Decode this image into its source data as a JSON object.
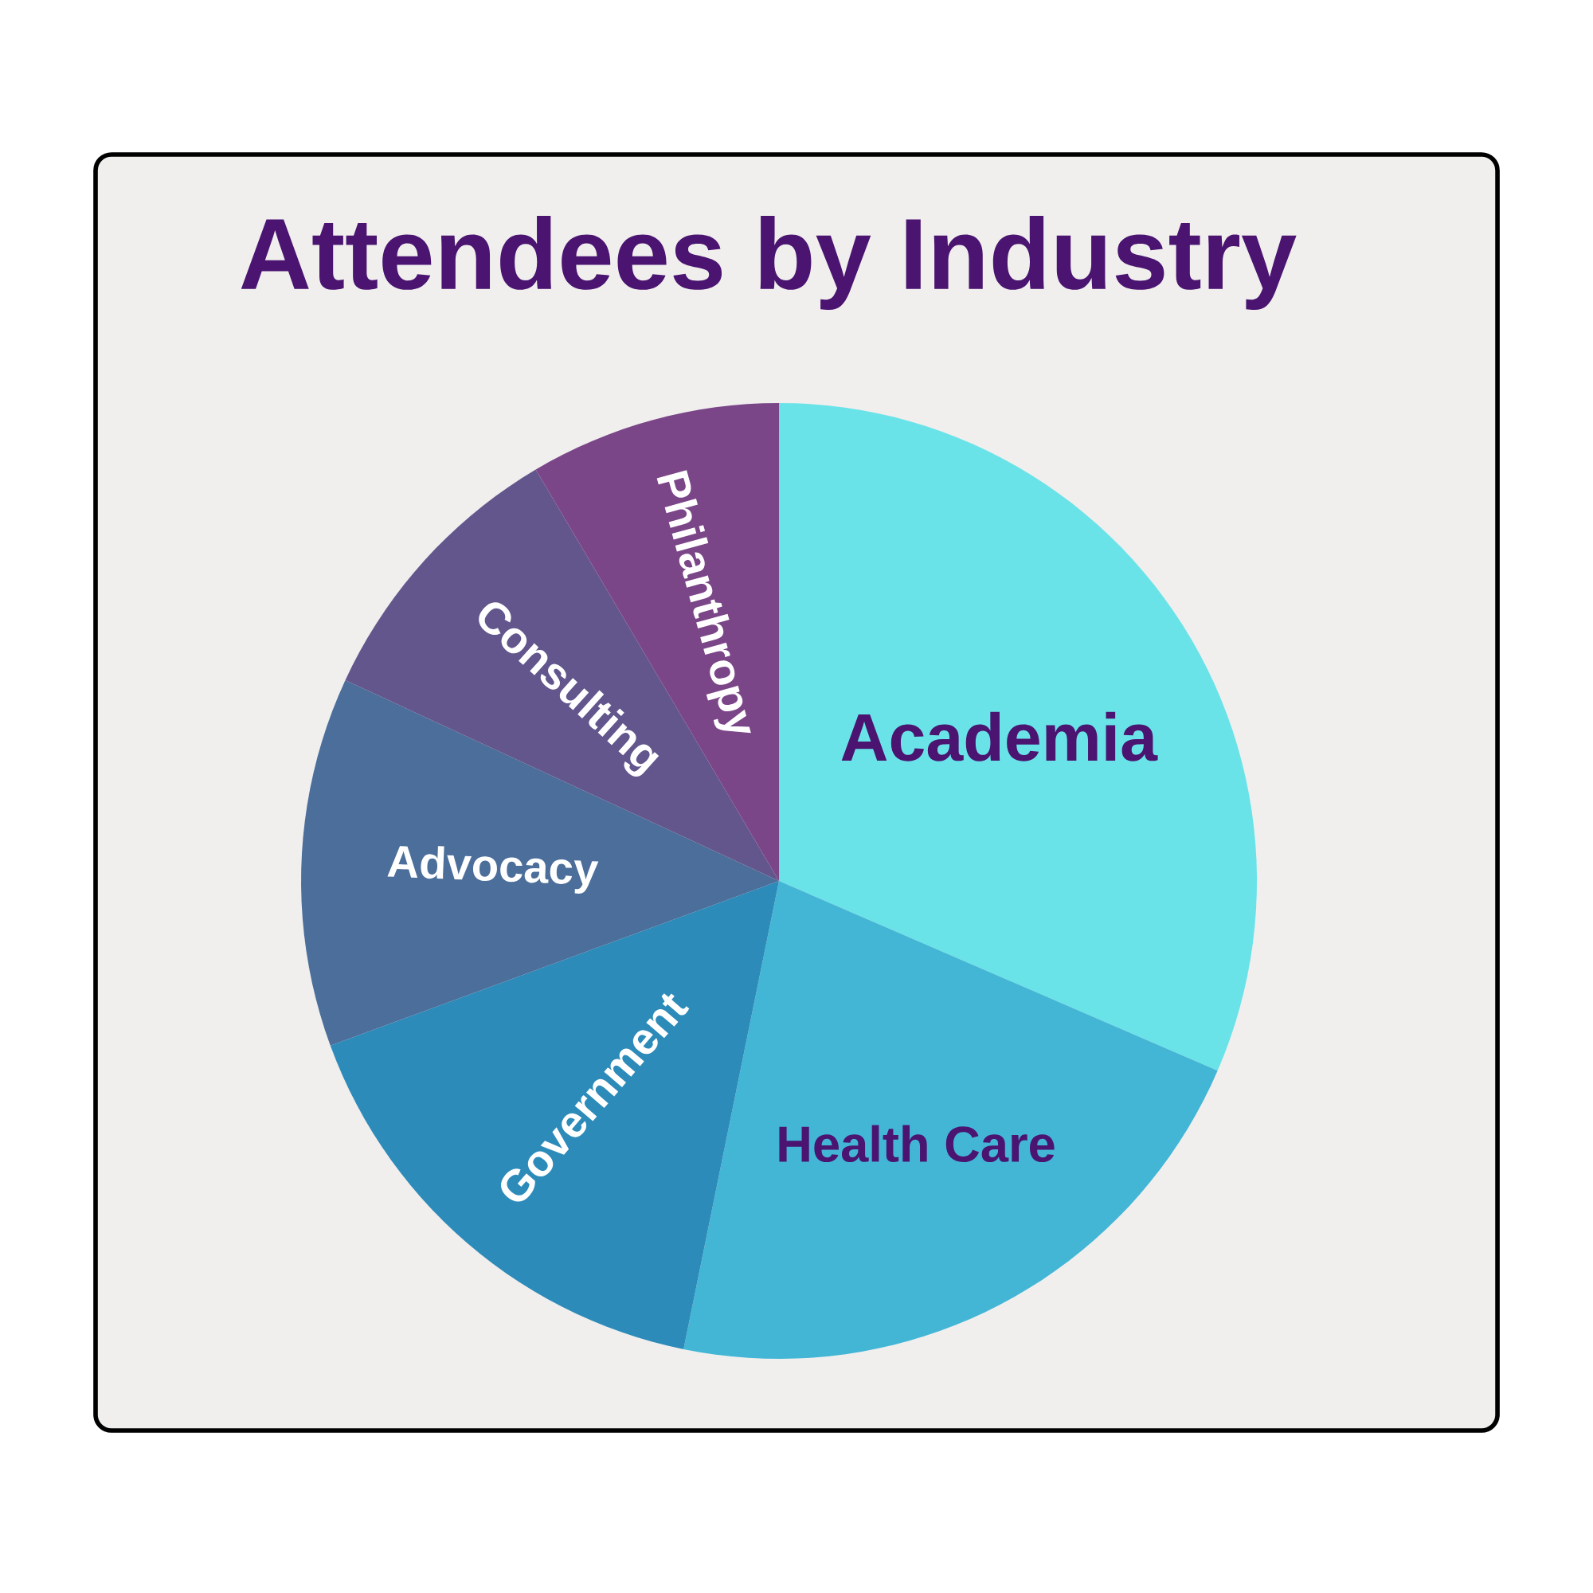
{
  "chart_data": {
    "type": "pie",
    "title": "Attendees by Industry",
    "categories": [
      "Academia",
      "Health Care",
      "Government",
      "Advocacy",
      "Consulting",
      "Philanthropy"
    ],
    "values": [
      31.5,
      21.7,
      16.2,
      12.5,
      9.6,
      8.5
    ],
    "colors": [
      "#6ae3e8",
      "#43b6d6",
      "#2d8bba",
      "#4b6e9a",
      "#62568c",
      "#7b4688"
    ]
  }
}
